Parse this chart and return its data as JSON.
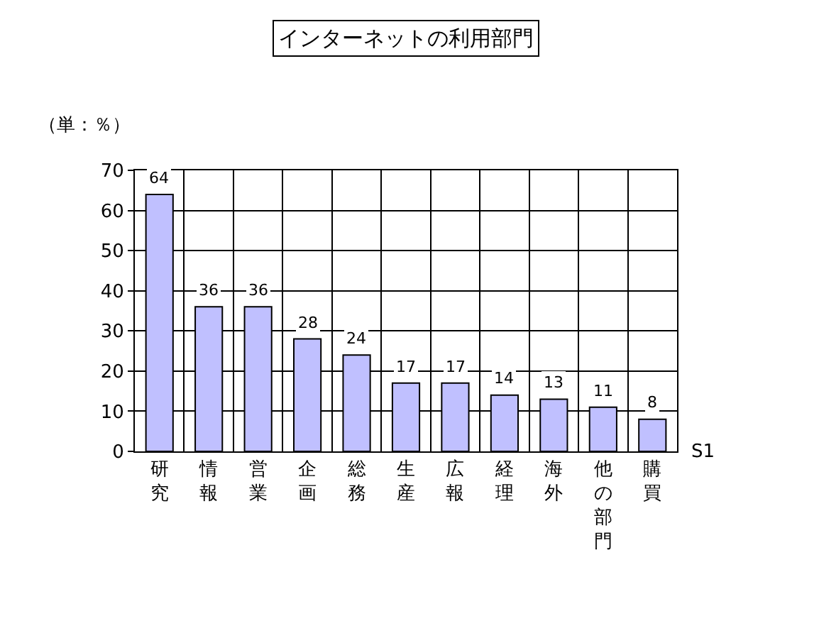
{
  "chart_data": {
    "type": "bar",
    "title": "インターネットの利用部門",
    "ylabel": "（単：％）",
    "categories": [
      "研究",
      "情報",
      "営業",
      "企画",
      "総務",
      "生産",
      "広報",
      "経理",
      "海外",
      "他の部門",
      "購買"
    ],
    "series": [
      {
        "name": "S1",
        "color": "#c0c0ff",
        "values": [
          64,
          36,
          36,
          28,
          24,
          17,
          17,
          14,
          13,
          11,
          8
        ]
      }
    ],
    "ylim": [
      0,
      70
    ],
    "yticks": [
      0,
      10,
      20,
      30,
      40,
      50,
      60,
      70
    ],
    "grid": true,
    "data_labels": true,
    "legend": false
  }
}
